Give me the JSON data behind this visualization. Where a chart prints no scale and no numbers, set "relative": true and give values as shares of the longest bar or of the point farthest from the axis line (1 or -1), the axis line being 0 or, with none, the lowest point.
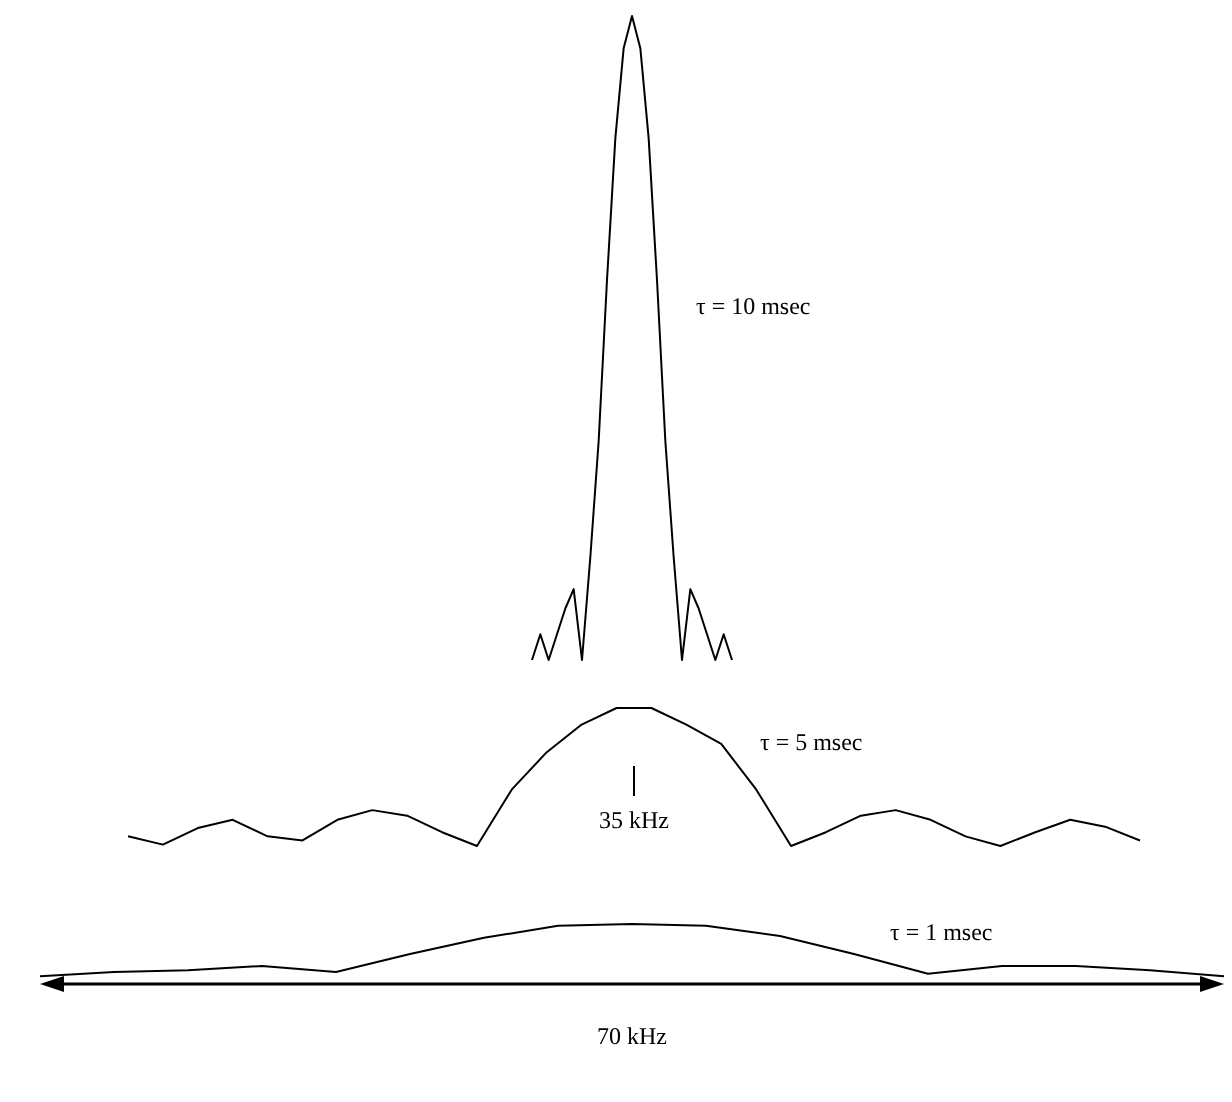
{
  "chart_data": [
    {
      "type": "line",
      "relative": true,
      "categories": [
        null,
        null,
        null,
        null,
        null,
        null,
        null,
        null,
        null,
        null,
        null,
        null,
        null,
        null,
        null,
        null,
        null,
        null,
        null,
        null,
        null,
        null,
        null,
        null,
        null
      ],
      "series": [
        {
          "name": "τ  = 10 msec",
          "color": "#000000",
          "values": [
            0,
            0.04,
            0,
            0.04,
            0.08,
            0.11,
            0,
            0.16,
            0.34,
            0.59,
            0.81,
            0.95,
            1,
            0.95,
            0.81,
            0.59,
            0.34,
            0.16,
            0,
            0.11,
            0.08,
            0.04,
            0,
            0.04,
            0
          ]
        }
      ]
    },
    {
      "type": "line",
      "relative": true,
      "categories": [
        null,
        null,
        null,
        null,
        null,
        null,
        null,
        null,
        null,
        null,
        null,
        null,
        null,
        null,
        null,
        null,
        null,
        null,
        null,
        null,
        null,
        null,
        null,
        null,
        null,
        null,
        null,
        null,
        null,
        null
      ],
      "series": [
        {
          "name": "τ  = 5 msec",
          "color": "#000000",
          "values": [
            0.07,
            0.01,
            0.13,
            0.19,
            0.07,
            0.04,
            0.19,
            0.26,
            0.22,
            0.1,
            0,
            0.41,
            0.68,
            0.88,
            1,
            1,
            0.88,
            0.74,
            0.41,
            0,
            0.1,
            0.22,
            0.26,
            0.19,
            0.07,
            0,
            0.1,
            0.19,
            0.14,
            0.04
          ]
        }
      ],
      "annotations": [
        "35 kHz"
      ]
    },
    {
      "type": "line",
      "relative": true,
      "categories": [
        null,
        null,
        null,
        null,
        null,
        null,
        null,
        null,
        null,
        null,
        null,
        null,
        null,
        null,
        null,
        null,
        null
      ],
      "series": [
        {
          "name": "τ  = 1 msec",
          "color": "#000000",
          "values": [
            0.13,
            0.2,
            0.23,
            0.3,
            0.2,
            0.5,
            0.77,
            0.97,
            1,
            0.97,
            0.8,
            0.5,
            0.17,
            0.3,
            0.3,
            0.23,
            0.13
          ]
        }
      ],
      "annotations": [
        "70 kHz"
      ]
    }
  ]
}
